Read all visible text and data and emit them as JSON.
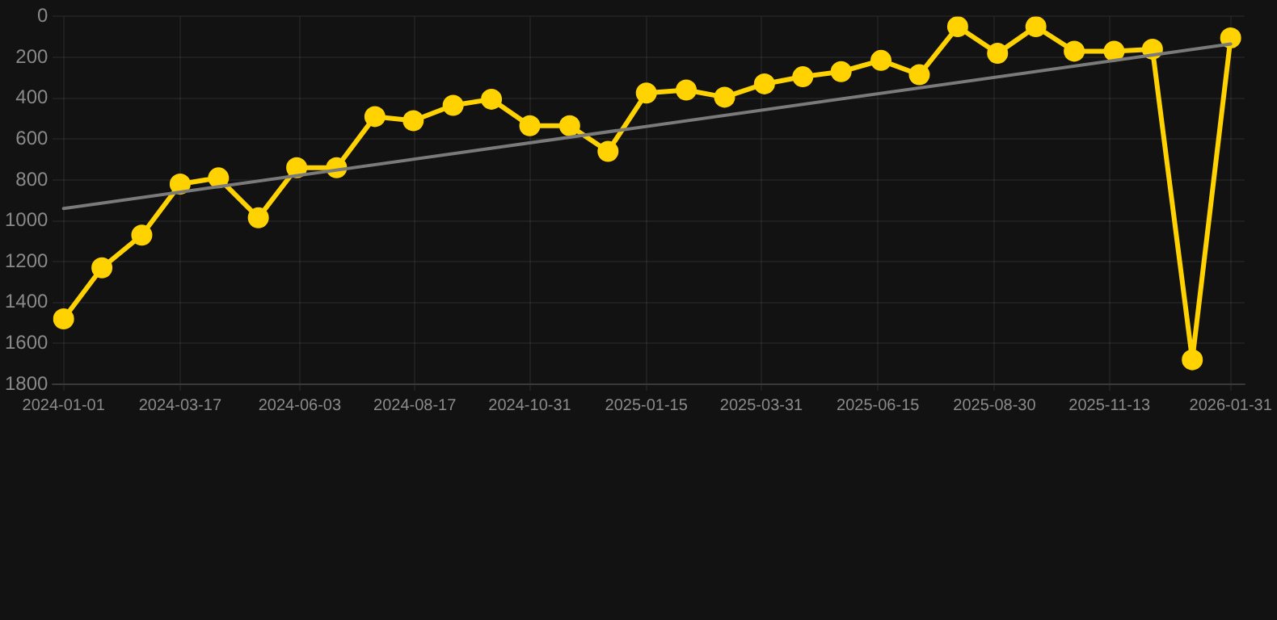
{
  "chart_data": {
    "type": "line",
    "x": [
      "2024-01-01",
      "2024-01-26",
      "2024-02-21",
      "2024-03-17",
      "2024-04-11",
      "2024-05-07",
      "2024-06-01",
      "2024-06-27",
      "2024-07-22",
      "2024-08-16",
      "2024-09-11",
      "2024-10-06",
      "2024-10-31",
      "2024-11-26",
      "2024-12-21",
      "2025-01-15",
      "2025-02-10",
      "2025-03-07",
      "2025-04-02",
      "2025-04-27",
      "2025-05-22",
      "2025-06-17",
      "2025-07-12",
      "2025-08-06",
      "2025-09-01",
      "2025-09-26",
      "2025-10-21",
      "2025-11-16",
      "2025-12-11",
      "2026-01-06",
      "2026-01-31"
    ],
    "series": [
      {
        "color": "#ffd200",
        "marker": "circle",
        "values": [
          1480,
          1230,
          1070,
          820,
          790,
          985,
          740,
          740,
          490,
          510,
          435,
          405,
          535,
          535,
          660,
          375,
          360,
          395,
          330,
          295,
          270,
          215,
          285,
          50,
          180,
          50,
          170,
          170,
          160,
          1680,
          105
        ]
      },
      {
        "type": "line",
        "color": "#7a7a7a",
        "marker": "none",
        "x": [
          "2024-01-01",
          "2026-01-31"
        ],
        "values": [
          940,
          135
        ]
      }
    ],
    "ylim": [
      1800,
      0
    ],
    "yticks": [
      0,
      200,
      400,
      600,
      800,
      1000,
      1200,
      1400,
      1600,
      1800
    ],
    "xlim": [
      "2023-12-25",
      "2026-02-09"
    ],
    "xticks": [
      {
        "value": "2024-01-01",
        "label": "2024-01-01"
      },
      {
        "value": "2024-03-17",
        "label": "2024-03-17"
      },
      {
        "value": "2024-06-03",
        "label": "2024-06-03"
      },
      {
        "value": "2024-08-17",
        "label": "2024-08-17"
      },
      {
        "value": "2024-10-31",
        "label": "2024-10-31"
      },
      {
        "value": "2025-01-15",
        "label": "2025-01-15"
      },
      {
        "value": "2025-03-31",
        "label": "2025-03-31"
      },
      {
        "value": "2025-06-15",
        "label": "2025-06-15"
      },
      {
        "value": "2025-08-30",
        "label": "2025-08-30"
      },
      {
        "value": "2025-11-13",
        "label": "2025-11-13"
      },
      {
        "value": "2026-01-31",
        "label": "2026-01-31"
      }
    ],
    "grid": true
  }
}
